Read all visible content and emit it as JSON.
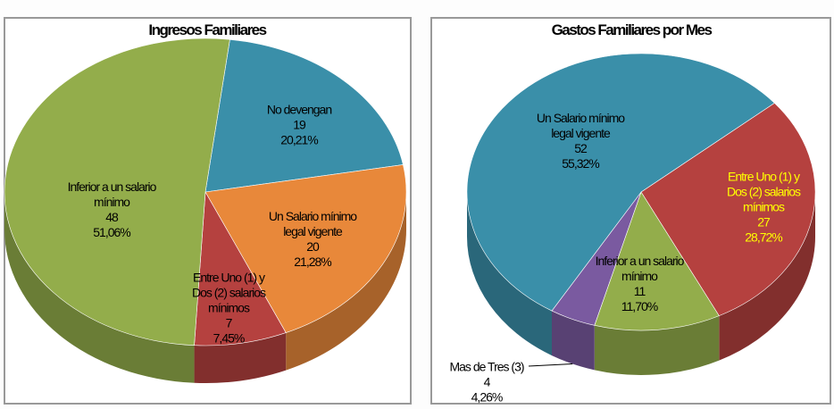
{
  "chart_data": [
    {
      "type": "pie",
      "title": "Ingresos Familiares",
      "categories": [
        "No devengan",
        "Un Salario mínimo legal vigente",
        "Entre Uno (1) y Dos (2) salarios mínimos",
        "Inferior a un salario mínimo"
      ],
      "values": [
        19,
        20,
        7,
        48
      ],
      "percentages": [
        {
          "value": 20.21,
          "label": "20,21%"
        },
        {
          "value": 21.28,
          "label": "21,28%"
        },
        {
          "value": 7.45,
          "label": "7,45%"
        },
        {
          "value": 51.06,
          "label": "51,06%"
        }
      ],
      "colors": [
        "#3a8fa9",
        "#e8883a",
        "#b5413f",
        "#93ad4b"
      ],
      "label_colors": [
        "#000000",
        "#000000",
        "#000000",
        "#000000"
      ]
    },
    {
      "type": "pie",
      "title": "Gastos Familiares por Mes",
      "categories": [
        "Entre Uno (1) y Dos (2) salarios mínimos",
        "Inferior a un salario mínimo",
        "Mas de Tres (3)",
        "Un Salario mínimo legal vigente"
      ],
      "values": [
        27,
        11,
        4,
        52
      ],
      "percentages": [
        {
          "value": 28.72,
          "label": "28,72%"
        },
        {
          "value": 11.7,
          "label": "11,70%"
        },
        {
          "value": 4.26,
          "label": "4,26%"
        },
        {
          "value": 55.32,
          "label": "55,32%"
        }
      ],
      "colors": [
        "#b5413f",
        "#93ad4b",
        "#7a5aa0",
        "#3a8fa9"
      ],
      "label_colors": [
        "#ffff00",
        "#000000",
        "#000000",
        "#000000"
      ]
    }
  ]
}
